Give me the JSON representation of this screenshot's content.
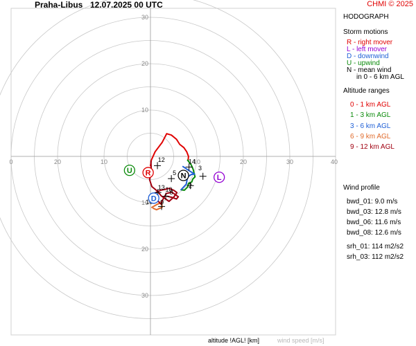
{
  "header": {
    "station": "Praha-Libus",
    "datetime": "12.07.2025 00 UTC",
    "copyright": "CHMI © 2025"
  },
  "legend": {
    "title": "HODOGRAPH",
    "storm_title": "Storm motions",
    "storm_items": [
      {
        "text": "R - right mover",
        "color": "#e00000"
      },
      {
        "text": "L - left mover",
        "color": "#9400d3"
      },
      {
        "text": "D - downwind",
        "color": "#1f5fd6"
      },
      {
        "text": "U - upwind",
        "color": "#0a8a0a"
      },
      {
        "text": "N - mean wind",
        "color": "#000000"
      }
    ],
    "mean_wind_sub": "in 0 - 6 km AGL",
    "alt_title": "Altitude ranges",
    "alt_items": [
      {
        "text": "0 - 1 km AGL",
        "color": "#e00000"
      },
      {
        "text": "1 - 3 km AGL",
        "color": "#0a8a0a"
      },
      {
        "text": "3 - 6 km AGL",
        "color": "#1f5fd6"
      },
      {
        "text": "6 - 9 km AGL",
        "color": "#e06a2a"
      },
      {
        "text": "9 - 12 km AGL",
        "color": "#a00010"
      }
    ],
    "profile_title": "Wind profile",
    "profile_items": [
      "bwd_01: 9.0 m/s",
      "bwd_03: 12.8 m/s",
      "bwd_06: 11.6 m/s",
      "bwd_08: 12.6 m/s"
    ],
    "srh_items": [
      "srh_01: 114 m2/s2",
      "srh_03: 112 m2/s2"
    ]
  },
  "footer": {
    "altitude_label": "altitude !AGL! [km]",
    "speed_label": "wind speed [m/s]"
  },
  "chart_data": {
    "type": "line",
    "x_ticks": [
      "0",
      "20",
      "10",
      "10",
      "20",
      "30",
      "40"
    ],
    "y_ticks": [
      "30",
      "20",
      "10",
      "10",
      "20",
      "30"
    ],
    "rings": [
      5,
      10,
      15,
      20,
      25,
      30,
      35
    ],
    "grid": true,
    "segments": [
      {
        "name": "0 - 1 km AGL",
        "color": "#e00000",
        "points": [
          [
            0.0,
            -2.0
          ],
          [
            0.2,
            -0.8
          ],
          [
            1.0,
            1.0
          ],
          [
            2.5,
            3.0
          ],
          [
            3.5,
            4.9
          ],
          [
            4.5,
            4.6
          ],
          [
            5.6,
            3.7
          ],
          [
            6.3,
            2.6
          ],
          [
            7.2,
            1.9
          ],
          [
            7.8,
            1.0
          ],
          [
            8.2,
            0.0
          ],
          [
            8.1,
            -0.8
          ]
        ]
      },
      {
        "name": "1 - 3 km AGL",
        "color": "#0a8a0a",
        "points": [
          [
            8.0,
            -0.8
          ],
          [
            8.8,
            -1.9
          ],
          [
            9.2,
            -2.8
          ],
          [
            9.6,
            -4.4
          ],
          [
            9.1,
            -4.9
          ],
          [
            8.9,
            -5.5
          ],
          [
            8.2,
            -5.8
          ],
          [
            8.0,
            -6.6
          ],
          [
            7.3,
            -7.3
          ],
          [
            6.6,
            -7.2
          ]
        ]
      },
      {
        "name": "3 - 6 km AGL",
        "color": "#1f5fd6",
        "points": [
          [
            6.6,
            -7.2
          ],
          [
            7.7,
            -6.0
          ],
          [
            8.0,
            -4.4
          ],
          [
            8.8,
            -3.9
          ],
          [
            9.5,
            -3.8
          ],
          [
            8.2,
            -3.0
          ],
          [
            7.0,
            -2.2
          ]
        ]
      },
      {
        "name": "6 - 9 km AGL",
        "color": "#e06a2a",
        "points": [
          [
            0.3,
            -11.0
          ],
          [
            1.5,
            -10.3
          ],
          [
            2.4,
            -10.0
          ],
          [
            2.5,
            -11.0
          ],
          [
            1.3,
            -11.5
          ],
          [
            0.6,
            -11.2
          ]
        ]
      },
      {
        "name": "9 - 12 km AGL",
        "color": "#a00010",
        "points": [
          [
            0.1,
            -1.0
          ],
          [
            0.2,
            -3.5
          ],
          [
            -0.2,
            -5.0
          ],
          [
            0.3,
            -6.5
          ],
          [
            1.5,
            -7.5
          ],
          [
            2.3,
            -8.5
          ],
          [
            3.0,
            -9.0
          ],
          [
            4.0,
            -9.7
          ],
          [
            5.0,
            -8.8
          ],
          [
            5.7,
            -7.8
          ],
          [
            5.0,
            -7.3
          ],
          [
            4.0,
            -6.9
          ],
          [
            3.2,
            -7.1
          ],
          [
            2.2,
            -7.3
          ],
          [
            1.2,
            -7.8
          ],
          [
            0.6,
            -8.2
          ],
          [
            1.6,
            -9.6
          ],
          [
            2.3,
            -10.3
          ],
          [
            2.5,
            -9.6
          ],
          [
            3.4,
            -8.0
          ],
          [
            4.6,
            -7.7
          ],
          [
            5.4,
            -8.3
          ],
          [
            6.0,
            -8.7
          ],
          [
            5.6,
            -9.2
          ],
          [
            4.5,
            -8.8
          ],
          [
            3.6,
            -8.6
          ]
        ]
      }
    ],
    "height_labels": [
      {
        "text": "12",
        "x": 1.6,
        "y": -1.2
      },
      {
        "text": "14",
        "x": 8.2,
        "y": -1.6
      },
      {
        "text": "3",
        "x": 10.3,
        "y": -3.0
      },
      {
        "text": "5",
        "x": 4.8,
        "y": -4.0
      },
      {
        "text": "13",
        "x": 1.6,
        "y": -7.2
      },
      {
        "text": "10",
        "x": 3.2,
        "y": -7.6
      },
      {
        "text": "8",
        "x": 4.1,
        "y": -8.2
      },
      {
        "text": "2",
        "x": 8.2,
        "y": -6.8
      },
      {
        "text": "9",
        "x": 2.1,
        "y": -10.4
      },
      {
        "text": "10",
        "x": -1.0,
        "y": -10.3
      }
    ],
    "storm_motions": [
      {
        "label": "R",
        "color": "#e00000",
        "x": -0.5,
        "y": -3.5
      },
      {
        "label": "L",
        "color": "#9400d3",
        "x": 14.8,
        "y": -4.5
      },
      {
        "label": "D",
        "color": "#1f5fd6",
        "x": 0.7,
        "y": -9.0
      },
      {
        "label": "U",
        "color": "#0a8a0a",
        "x": -4.5,
        "y": -3.0
      },
      {
        "label": "N",
        "color": "#000000",
        "x": 7.1,
        "y": -4.1
      }
    ],
    "crosses": [
      {
        "x": 1.5,
        "y": -2.0
      },
      {
        "x": 8.3,
        "y": -2.3
      },
      {
        "x": 11.3,
        "y": -4.3
      },
      {
        "x": 4.5,
        "y": -4.8
      },
      {
        "x": 1.6,
        "y": -7.8
      },
      {
        "x": 3.3,
        "y": -8.6
      },
      {
        "x": 2.4,
        "y": -10.8
      },
      {
        "x": 8.6,
        "y": -6.3
      }
    ]
  }
}
